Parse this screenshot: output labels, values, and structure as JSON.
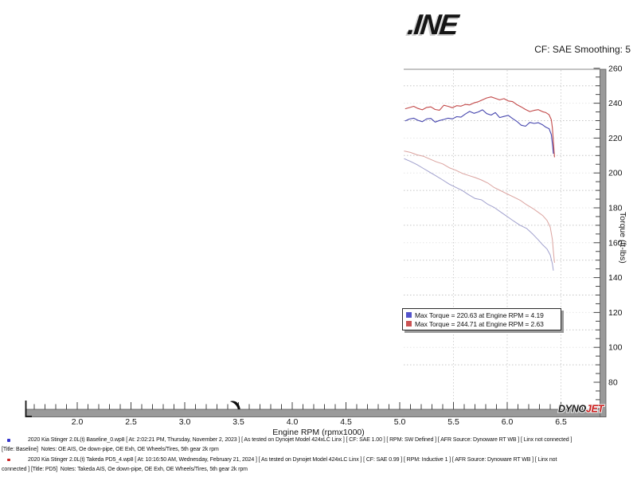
{
  "header": {
    "logo_text": ".INE",
    "cf_text": "CF: SAE Smoothing: 5"
  },
  "chart_data": {
    "type": "line",
    "title": "",
    "xlabel": "Engine RPM (rpmx1000)",
    "ylabel": "Torque (ft-lbs)",
    "x_range": [
      1.55,
      6.87
    ],
    "y_range": [
      65,
      260
    ],
    "x_major_ticks": [
      2.0,
      2.5,
      3.0,
      3.5,
      4.0,
      4.5,
      5.0,
      5.5,
      6.0,
      6.5
    ],
    "x_minor_step": 0.1,
    "y_major_ticks": [
      80,
      100,
      120,
      140,
      160,
      180,
      200,
      220,
      240,
      260
    ],
    "y_minor_step": 5,
    "grid": "dotted, rendered only right of x=5.04",
    "rendered_from_rpm": 5.04,
    "vertical_gridlines": [
      5.5,
      6.0,
      6.5
    ],
    "cursor_marker_x": 3.45,
    "legend": {
      "position": "inside-plot lower-left of rendered region",
      "items": [
        {
          "color": "#5353cb",
          "text": "Max Torque = 220.63 at Engine RPM = 4.19"
        },
        {
          "color": "#cb5353",
          "text": "Max Torque = 244.71 at Engine RPM = 2.63"
        }
      ]
    },
    "series": [
      {
        "name": "pd5-torque-red",
        "color": "#c24848",
        "width": 1.1,
        "points": [
          [
            5.05,
            236.8
          ],
          [
            5.09,
            237.5
          ],
          [
            5.13,
            238.2
          ],
          [
            5.17,
            237.0
          ],
          [
            5.21,
            236.2
          ],
          [
            5.25,
            237.6
          ],
          [
            5.29,
            237.9
          ],
          [
            5.33,
            236.4
          ],
          [
            5.37,
            236.0
          ],
          [
            5.41,
            238.8
          ],
          [
            5.45,
            238.2
          ],
          [
            5.49,
            237.4
          ],
          [
            5.53,
            238.6
          ],
          [
            5.57,
            238.3
          ],
          [
            5.61,
            239.3
          ],
          [
            5.65,
            239.0
          ],
          [
            5.69,
            240.2
          ],
          [
            5.73,
            240.8
          ],
          [
            5.77,
            241.9
          ],
          [
            5.81,
            243.0
          ],
          [
            5.85,
            243.6
          ],
          [
            5.89,
            242.8
          ],
          [
            5.93,
            241.9
          ],
          [
            5.97,
            242.6
          ],
          [
            6.01,
            241.3
          ],
          [
            6.05,
            240.9
          ],
          [
            6.09,
            239.2
          ],
          [
            6.13,
            237.9
          ],
          [
            6.17,
            236.4
          ],
          [
            6.21,
            235.2
          ],
          [
            6.25,
            235.9
          ],
          [
            6.29,
            236.3
          ],
          [
            6.33,
            235.1
          ],
          [
            6.36,
            234.6
          ],
          [
            6.39,
            233.4
          ],
          [
            6.41,
            230.5
          ],
          [
            6.42,
            226.0
          ],
          [
            6.43,
            218.0
          ],
          [
            6.44,
            209.0
          ]
        ]
      },
      {
        "name": "baseline-torque-blue",
        "color": "#4646ae",
        "width": 1.1,
        "points": [
          [
            5.05,
            229.8
          ],
          [
            5.09,
            230.9
          ],
          [
            5.13,
            231.4
          ],
          [
            5.17,
            230.2
          ],
          [
            5.21,
            229.4
          ],
          [
            5.25,
            231.0
          ],
          [
            5.29,
            231.3
          ],
          [
            5.33,
            229.2
          ],
          [
            5.37,
            230.1
          ],
          [
            5.41,
            230.7
          ],
          [
            5.45,
            231.4
          ],
          [
            5.49,
            231.0
          ],
          [
            5.53,
            232.3
          ],
          [
            5.57,
            232.0
          ],
          [
            5.61,
            233.8
          ],
          [
            5.65,
            235.3
          ],
          [
            5.69,
            234.2
          ],
          [
            5.73,
            235.0
          ],
          [
            5.77,
            236.2
          ],
          [
            5.81,
            234.0
          ],
          [
            5.85,
            233.2
          ],
          [
            5.89,
            234.6
          ],
          [
            5.93,
            231.8
          ],
          [
            5.97,
            232.4
          ],
          [
            6.01,
            233.0
          ],
          [
            6.05,
            231.2
          ],
          [
            6.09,
            229.6
          ],
          [
            6.13,
            227.4
          ],
          [
            6.17,
            226.8
          ],
          [
            6.21,
            229.0
          ],
          [
            6.25,
            228.4
          ],
          [
            6.29,
            228.8
          ],
          [
            6.33,
            227.6
          ],
          [
            6.36,
            226.2
          ],
          [
            6.39,
            225.4
          ],
          [
            6.41,
            222.0
          ],
          [
            6.42,
            217.0
          ],
          [
            6.43,
            211.0
          ]
        ]
      },
      {
        "name": "pd5-secondary-red-faint",
        "color": "#dba39f",
        "width": 1,
        "points": [
          [
            5.04,
            212.6
          ],
          [
            5.1,
            211.8
          ],
          [
            5.16,
            210.4
          ],
          [
            5.22,
            209.6
          ],
          [
            5.28,
            208.0
          ],
          [
            5.34,
            206.4
          ],
          [
            5.4,
            205.2
          ],
          [
            5.46,
            203.0
          ],
          [
            5.52,
            201.6
          ],
          [
            5.58,
            199.8
          ],
          [
            5.64,
            198.6
          ],
          [
            5.7,
            197.4
          ],
          [
            5.76,
            196.0
          ],
          [
            5.82,
            194.2
          ],
          [
            5.88,
            191.6
          ],
          [
            5.94,
            189.8
          ],
          [
            6.0,
            188.0
          ],
          [
            6.06,
            186.2
          ],
          [
            6.12,
            184.4
          ],
          [
            6.18,
            181.8
          ],
          [
            6.24,
            179.6
          ],
          [
            6.29,
            177.4
          ],
          [
            6.33,
            175.6
          ],
          [
            6.37,
            172.8
          ],
          [
            6.4,
            169.0
          ],
          [
            6.42,
            162.0
          ],
          [
            6.43,
            155.0
          ],
          [
            6.44,
            148.5
          ]
        ]
      },
      {
        "name": "baseline-secondary-blue-faint",
        "color": "#a0a0cd",
        "width": 1,
        "points": [
          [
            5.04,
            208.2
          ],
          [
            5.1,
            206.6
          ],
          [
            5.16,
            204.8
          ],
          [
            5.22,
            202.6
          ],
          [
            5.28,
            200.4
          ],
          [
            5.34,
            198.2
          ],
          [
            5.4,
            196.0
          ],
          [
            5.46,
            193.6
          ],
          [
            5.52,
            191.8
          ],
          [
            5.58,
            190.0
          ],
          [
            5.64,
            187.6
          ],
          [
            5.7,
            185.4
          ],
          [
            5.76,
            184.6
          ],
          [
            5.82,
            182.0
          ],
          [
            5.88,
            180.2
          ],
          [
            5.94,
            177.6
          ],
          [
            6.0,
            175.0
          ],
          [
            6.06,
            172.4
          ],
          [
            6.12,
            170.0
          ],
          [
            6.18,
            168.2
          ],
          [
            6.24,
            164.8
          ],
          [
            6.29,
            161.6
          ],
          [
            6.33,
            158.8
          ],
          [
            6.37,
            156.4
          ],
          [
            6.4,
            153.0
          ],
          [
            6.42,
            148.0
          ],
          [
            6.43,
            144.0
          ]
        ]
      }
    ],
    "brand": {
      "dyno": "DYNO",
      "jet": "JET",
      "dyno_color": "#1f1f1f",
      "jet_color": "#cf1d1d"
    }
  },
  "footer": {
    "runs": [
      {
        "bullet_color": "#3333cc",
        "line1": "2020 Kia Stinger 2.0L(t) Baseline_0.wp8 [ At: 2:02:21 PM, Thursday, November 2, 2023 ] [ As tested on Dynojet Model 424xLC Linx ] [ CF: SAE 1.00 ] [ RPM: SW Defined ] [ AFR Source: Dynoware RT WB ] [ Linx not connected ]",
        "line2": "[Title: Baseline]  Notes: OE AIS, Oe down-pipe, OE Exh, OE Wheels/Tires, 5th gear 2k rpm"
      },
      {
        "bullet_color": "#cc2222",
        "line1": "2020 Kia Stinger 2.0L(t) Takeda PD5_4.wp8 [ At: 10:16:50 AM, Wednesday, February 21, 2024 ] [ As tested on Dynojet Model 424xLC Linx ] [ CF: SAE 0.99 ] [ RPM: Inductive 1 ] [ AFR Source: Dynoware RT WB ] [ Linx not",
        "line2": "connected ] [Title: PD5]  Notes: Takeda AIS, Oe down-pipe, OE Exh, OE Wheels/Tires, 5th gear 2k rpm"
      }
    ]
  }
}
